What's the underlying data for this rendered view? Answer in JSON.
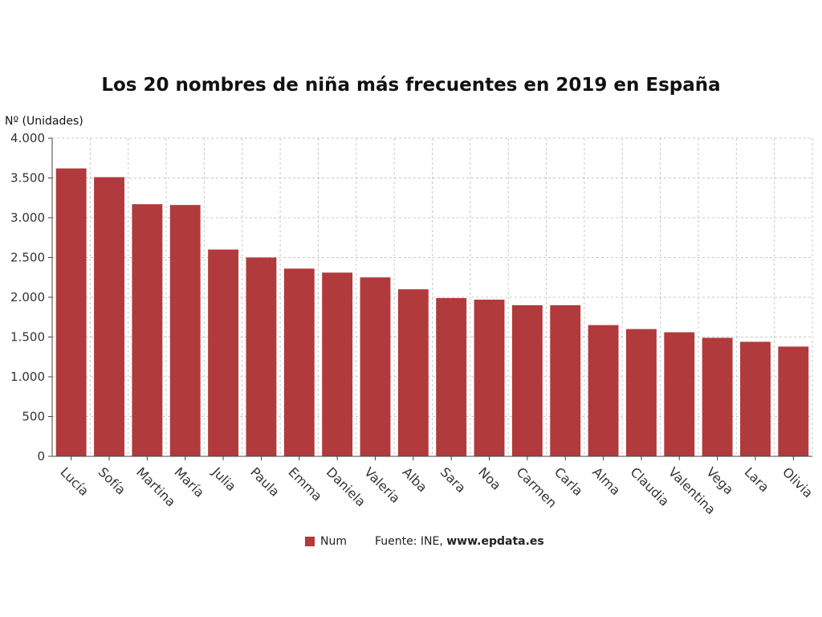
{
  "colors": {
    "bar": "#B13A3C",
    "grid": "#C8C8C8",
    "axis": "#444444"
  },
  "chart_data": {
    "type": "bar",
    "title": "Los 20 nombres de niña más frecuentes en 2019 en España",
    "ylabel": "Nº (Unidades)",
    "xlabel": "",
    "categories": [
      "Lucía",
      "Sofía",
      "Martina",
      "María",
      "Julia",
      "Paula",
      "Emma",
      "Daniela",
      "Valeria",
      "Alba",
      "Sara",
      "Noa",
      "Carmen",
      "Carla",
      "Alma",
      "Claudia",
      "Valentina",
      "Vega",
      "Lara",
      "Olivia"
    ],
    "series": [
      {
        "name": "Num",
        "values": [
          3620,
          3510,
          3170,
          3160,
          2600,
          2500,
          2360,
          2310,
          2250,
          2100,
          1990,
          1970,
          1900,
          1900,
          1650,
          1600,
          1560,
          1490,
          1440,
          1380
        ]
      }
    ],
    "ylim": [
      0,
      4000
    ],
    "yticks": [
      0,
      500,
      1000,
      1500,
      2000,
      2500,
      3000,
      3500,
      4000
    ],
    "ytick_labels": [
      "0",
      "500",
      "1.000",
      "1.500",
      "2.000",
      "2.500",
      "3.000",
      "3.500",
      "4.000"
    ],
    "grid": true,
    "legend_position": "bottom-center"
  },
  "legend": {
    "label": "Num"
  },
  "source": {
    "prefix": "Fuente: INE, ",
    "site": "www.epdata.es"
  }
}
